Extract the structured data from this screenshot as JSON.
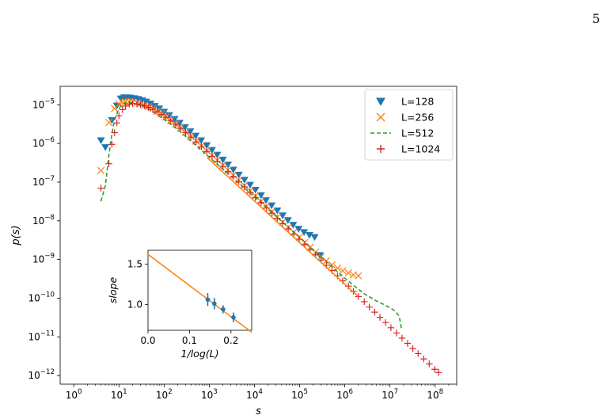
{
  "page": {
    "number": "5"
  },
  "chart_data": [
    {
      "type": "scatter",
      "xscale": "log",
      "yscale": "log",
      "xlabel": "s",
      "ylabel": "p(s)",
      "xlim": [
        0.5,
        300000000
      ],
      "ylim": [
        6e-13,
        3e-05
      ],
      "x_ticks": [
        {
          "value": 1,
          "base": "10",
          "exp": "0"
        },
        {
          "value": 10,
          "base": "10",
          "exp": "1"
        },
        {
          "value": 100,
          "base": "10",
          "exp": "2"
        },
        {
          "value": 1000,
          "base": "10",
          "exp": "3"
        },
        {
          "value": 10000,
          "base": "10",
          "exp": "4"
        },
        {
          "value": 100000,
          "base": "10",
          "exp": "5"
        },
        {
          "value": 1000000,
          "base": "10",
          "exp": "6"
        },
        {
          "value": 10000000,
          "base": "10",
          "exp": "7"
        },
        {
          "value": 100000000,
          "base": "10",
          "exp": "8"
        }
      ],
      "y_ticks": [
        {
          "value": 1e-12,
          "base": "10",
          "exp": "−12"
        },
        {
          "value": 1e-11,
          "base": "10",
          "exp": "−11"
        },
        {
          "value": 1e-10,
          "base": "10",
          "exp": "−10"
        },
        {
          "value": 1e-09,
          "base": "10",
          "exp": "−9"
        },
        {
          "value": 1e-08,
          "base": "10",
          "exp": "−8"
        },
        {
          "value": 1e-07,
          "base": "10",
          "exp": "−7"
        },
        {
          "value": 1e-06,
          "base": "10",
          "exp": "−6"
        },
        {
          "value": 1e-05,
          "base": "10",
          "exp": "−5"
        }
      ],
      "legend_position": "top-right",
      "series": [
        {
          "name": "L=128",
          "marker": "triangle-down",
          "color": "#1f77b4",
          "x": [
            4,
            5,
            7,
            9,
            11,
            13,
            15,
            18,
            22,
            27,
            33,
            40,
            50,
            62,
            78,
            100,
            130,
            170,
            220,
            290,
            380,
            500,
            660,
            880,
            1150,
            1500,
            2000,
            2600,
            3400,
            4500,
            6000,
            8000,
            10500,
            14000,
            18000,
            24000,
            32000,
            42000,
            55000,
            72000,
            95000,
            125000,
            165000,
            215000,
            280000
          ],
          "y": [
            1.2e-06,
            8e-07,
            4e-06,
            9.5e-06,
            1.45e-05,
            1.55e-05,
            1.55e-05,
            1.52e-05,
            1.47e-05,
            1.4e-05,
            1.3e-05,
            1.2e-05,
            1.07e-05,
            9.3e-06,
            8e-06,
            6.6e-06,
            5.4e-06,
            4.3e-06,
            3.4e-06,
            2.65e-06,
            2.05e-06,
            1.58e-06,
            1.2e-06,
            9e-07,
            6.8e-07,
            5.1e-07,
            3.8e-07,
            2.85e-07,
            2.1e-07,
            1.55e-07,
            1.15e-07,
            8.5e-08,
            6.3e-08,
            4.6e-08,
            3.4e-08,
            2.5e-08,
            1.85e-08,
            1.38e-08,
            1.04e-08,
            7.9e-09,
            6.2e-09,
            5.1e-09,
            4.3e-09,
            3.8e-09,
            1.3e-09
          ]
        },
        {
          "name": "L=256",
          "marker": "x",
          "color": "#ff7f0e",
          "x": [
            4,
            6,
            8,
            10,
            12,
            14,
            17,
            20,
            25,
            30,
            37,
            45,
            56,
            70,
            88,
            110,
            140,
            180,
            230,
            300,
            390,
            510,
            670,
            880,
            1150,
            1500,
            2000,
            2600,
            3400,
            4500,
            6000,
            8000,
            10500,
            14000,
            18500,
            24500,
            32000,
            42000,
            56000,
            74000,
            98000,
            130000,
            170000,
            225000,
            300000,
            390000,
            520000,
            690000,
            900000,
            1200000,
            1550000,
            2000000
          ],
          "y": [
            2e-07,
            3.5e-06,
            8e-06,
            1.05e-05,
            1.15e-05,
            1.2e-05,
            1.2e-05,
            1.18e-05,
            1.13e-05,
            1.06e-05,
            9.8e-06,
            8.9e-06,
            7.9e-06,
            6.8e-06,
            5.8e-06,
            4.85e-06,
            3.95e-06,
            3.15e-06,
            2.5e-06,
            1.95e-06,
            1.5e-06,
            1.15e-06,
            8.7e-07,
            6.5e-07,
            4.9e-07,
            3.7e-07,
            2.75e-07,
            2.05e-07,
            1.52e-07,
            1.12e-07,
            8.2e-08,
            6e-08,
            4.4e-08,
            3.2e-08,
            2.35e-08,
            1.72e-08,
            1.26e-08,
            9.3e-09,
            6.8e-09,
            5e-09,
            3.7e-09,
            2.75e-09,
            2.05e-09,
            1.55e-09,
            1.18e-09,
            9.2e-10,
            7.3e-10,
            6e-10,
            5.1e-10,
            4.5e-10,
            4e-10,
            3.8e-10
          ]
        },
        {
          "name": "L=512",
          "marker": "dashed-line",
          "color": "#2ca02c",
          "x": [
            4,
            5,
            6,
            7,
            8,
            10,
            12,
            15,
            20,
            30,
            50,
            100,
            200,
            500,
            1000,
            3000,
            10000,
            30000,
            100000,
            300000,
            1000000,
            2000000,
            3000000,
            5000000,
            8000000,
            12000000,
            16000000,
            18000000
          ],
          "y": [
            3.2e-08,
            8e-08,
            5e-07,
            1.8e-06,
            4e-06,
            8e-06,
            1.05e-05,
            1.15e-05,
            1.12e-05,
            9.8e-06,
            7.3e-06,
            4.2e-06,
            2.3e-06,
            9e-07,
            4.4e-07,
            1.45e-07,
            4.2e-08,
            1.3e-08,
            3.8e-09,
            1.15e-09,
            3.3e-10,
            1.7e-10,
            1.2e-10,
            8.5e-11,
            6.5e-11,
            5e-11,
            3.5e-11,
            1.6e-11
          ]
        },
        {
          "name": "L=1024",
          "marker": "plus",
          "color": "#d62728",
          "x": [
            4,
            6,
            7,
            8,
            9,
            10,
            12,
            14,
            17,
            20,
            25,
            30,
            37,
            45,
            56,
            70,
            88,
            110,
            140,
            180,
            230,
            300,
            390,
            510,
            670,
            880,
            1150,
            1500,
            2000,
            2600,
            3400,
            4500,
            6000,
            8000,
            10500,
            14000,
            18500,
            24500,
            32000,
            42000,
            56000,
            74000,
            98000,
            130000,
            170000,
            225000,
            300000,
            390000,
            520000,
            690000,
            900000,
            1200000,
            1550000,
            2000000,
            2700000,
            3500000,
            4600000,
            6000000,
            8000000,
            10500000,
            14000000,
            18500000,
            24500000,
            32000000,
            42000000,
            56000000,
            74000000,
            98000000,
            120000000
          ],
          "y": [
            7e-08,
            3e-07,
            9.5e-07,
            1.9e-06,
            3.4e-06,
            5.2e-06,
            7.5e-06,
            9.3e-06,
            1.04e-05,
            1.08e-05,
            1.06e-05,
            1.01e-05,
            9.4e-06,
            8.6e-06,
            7.6e-06,
            6.6e-06,
            5.6e-06,
            4.7e-06,
            3.85e-06,
            3.1e-06,
            2.45e-06,
            1.9e-06,
            1.46e-06,
            1.1e-06,
            8.3e-07,
            6.2e-07,
            4.65e-07,
            3.45e-07,
            2.55e-07,
            1.88e-07,
            1.39e-07,
            1.02e-07,
            7.5e-08,
            5.5e-08,
            4e-08,
            2.95e-08,
            2.15e-08,
            1.58e-08,
            1.16e-08,
            8.5e-09,
            6.2e-09,
            4.55e-09,
            3.35e-09,
            2.45e-09,
            1.8e-09,
            1.32e-09,
            9.7e-10,
            7.1e-10,
            5.2e-10,
            3.8e-10,
            2.8e-10,
            2.05e-10,
            1.5e-10,
            1.1e-10,
            8.1e-11,
            5.9e-11,
            4.35e-11,
            3.2e-11,
            2.35e-11,
            1.72e-11,
            1.26e-11,
            9.3e-12,
            6.8e-12,
            5e-12,
            3.7e-12,
            2.7e-12,
            2e-12,
            1.45e-12,
            1.2e-12
          ]
        }
      ],
      "fit_line": {
        "color": "#ff7f0e",
        "x": [
          900,
          2000000
        ],
        "y": [
          4.3e-07,
          1.1e-10
        ]
      }
    },
    {
      "type": "scatter",
      "xlabel": "1/log(L)",
      "ylabel": "slope",
      "xlim": [
        0.0,
        0.25
      ],
      "ylim": [
        0.68,
        1.67
      ],
      "x_ticks": [
        "0.0",
        "0.1",
        "0.2"
      ],
      "y_ticks": [
        "1.0",
        "1.5"
      ],
      "points": {
        "color": "#1f77b4",
        "x": [
          0.144,
          0.16,
          0.181,
          0.206
        ],
        "y": [
          1.06,
          1.01,
          0.94,
          0.84
        ],
        "err": [
          0.08,
          0.07,
          0.05,
          0.06
        ]
      },
      "fit_line": {
        "color": "#ff7f0e",
        "intercept": 1.62,
        "slope": -3.86
      }
    }
  ]
}
